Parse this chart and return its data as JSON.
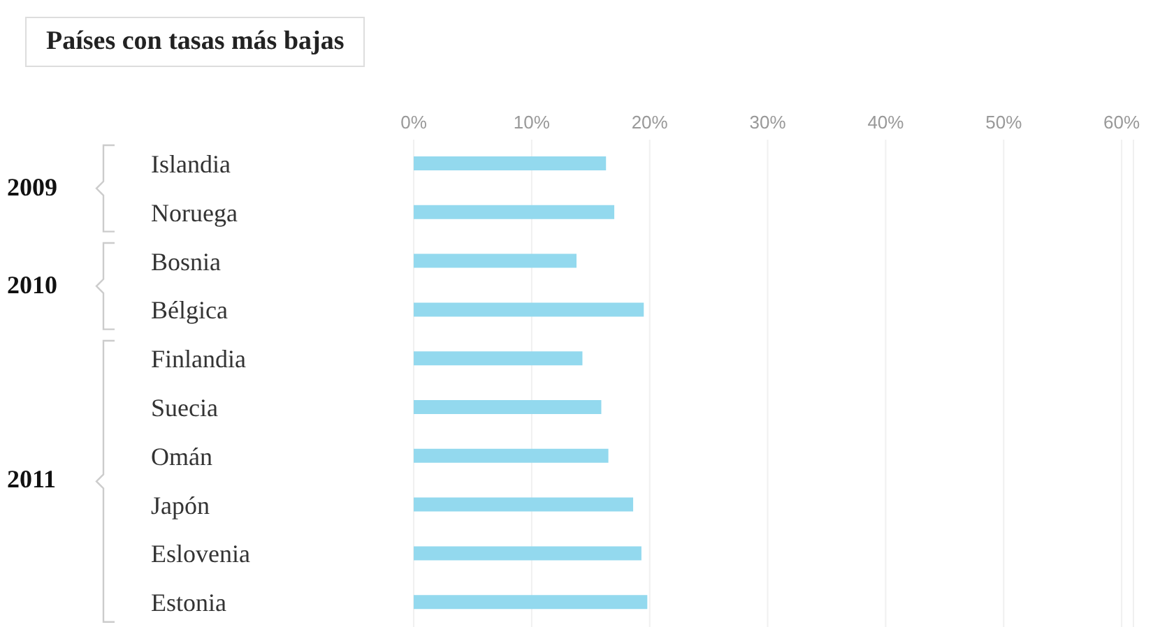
{
  "chart_data": {
    "type": "bar",
    "orientation": "horizontal",
    "title": "Países con tasas más bajas",
    "categories": [
      "Islandia",
      "Noruega",
      "Bosnia",
      "Bélgica",
      "Finlandia",
      "Suecia",
      "Omán",
      "Japón",
      "Eslovenia",
      "Estonia"
    ],
    "values": [
      16.3,
      17.0,
      13.8,
      19.5,
      14.3,
      15.9,
      16.5,
      18.6,
      19.3,
      19.8
    ],
    "color": "#93d9ee",
    "xlim": [
      0,
      61
    ],
    "xticks": [
      {
        "value": 0,
        "label": "0%"
      },
      {
        "value": 10,
        "label": "10%"
      },
      {
        "value": 20,
        "label": "20%"
      },
      {
        "value": 30,
        "label": "30%"
      },
      {
        "value": 40,
        "label": "40%"
      },
      {
        "value": 50,
        "label": "50%"
      },
      {
        "value": 60,
        "label": "60%"
      }
    ],
    "grid": "x",
    "annotations": [
      "2009",
      "2010",
      "2011"
    ]
  }
}
